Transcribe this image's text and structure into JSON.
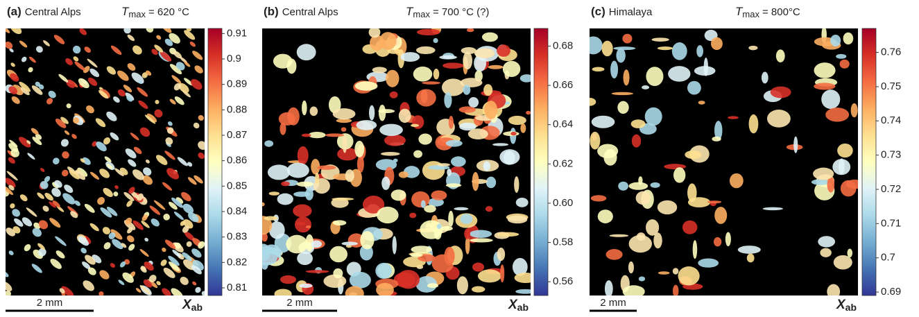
{
  "panels": [
    {
      "label": "(a)",
      "location": "Central Alps",
      "tmax_symbol": "T",
      "tmax_sub": "max",
      "tmax_value": "= 620 °C",
      "scale_bar": "2 mm",
      "colorbar_symbol": "X",
      "colorbar_sub": "ab",
      "colorbar_lim": [
        0.807,
        0.912
      ],
      "colorbar_ticks": [
        0.81,
        0.82,
        0.83,
        0.84,
        0.85,
        0.86,
        0.87,
        0.88,
        0.89,
        0.9,
        0.91
      ]
    },
    {
      "label": "(b)",
      "location": "Central Alps",
      "tmax_symbol": "T",
      "tmax_sub": "max",
      "tmax_value": "= 700 °C (?)",
      "scale_bar": "2 mm",
      "colorbar_symbol": "X",
      "colorbar_sub": "ab",
      "colorbar_lim": [
        0.553,
        0.689
      ],
      "colorbar_ticks": [
        0.56,
        0.58,
        {
          "value": 0.6,
          "label": "0.60"
        },
        0.62,
        0.64,
        0.66,
        0.68
      ]
    },
    {
      "label": "(c)",
      "location": "Himalaya",
      "tmax_symbol": "T",
      "tmax_sub": "max",
      "tmax_value": "= 800°C",
      "scale_bar": "2 mm",
      "colorbar_symbol": "X",
      "colorbar_sub": "ab",
      "colorbar_lim": [
        0.689,
        0.767
      ],
      "colorbar_ticks": [
        0.69,
        0.7,
        0.71,
        0.72,
        0.73,
        0.74,
        0.75,
        0.76
      ]
    }
  ]
}
